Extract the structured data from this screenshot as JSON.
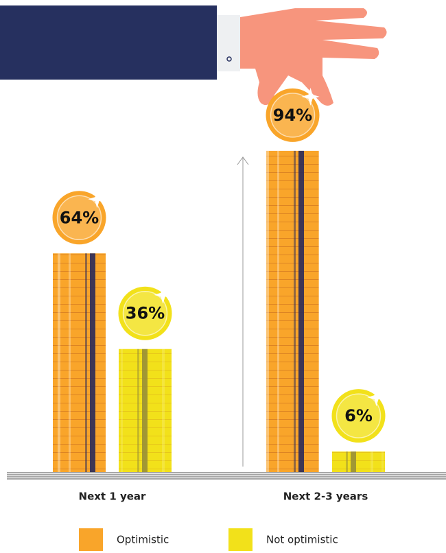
{
  "chart_data": {
    "type": "bar",
    "categories": [
      "Next 1 year",
      "Next 2-3 years"
    ],
    "series": [
      {
        "name": "Optimistic",
        "color": "#f9a52a",
        "values": [
          64,
          94
        ],
        "value_labels": [
          "64%",
          "94%"
        ]
      },
      {
        "name": "Not optimistic",
        "color": "#f2e11a",
        "values": [
          36,
          6
        ],
        "value_labels": [
          "36%",
          "6%"
        ]
      }
    ],
    "ylim": [
      0,
      100
    ]
  }
}
